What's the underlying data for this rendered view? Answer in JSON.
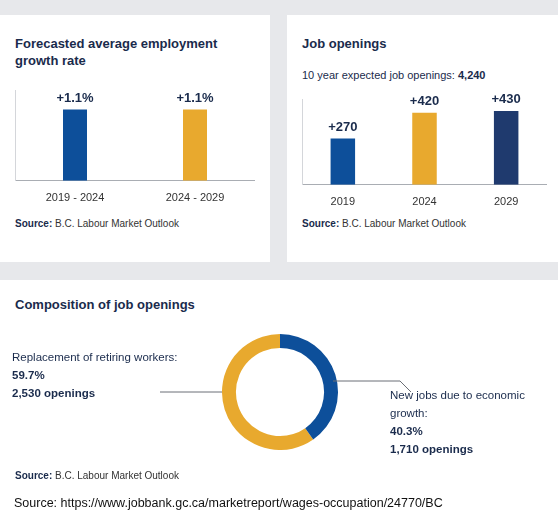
{
  "chart_data": [
    {
      "type": "bar",
      "title": "Forecasted average employment growth rate",
      "categories": [
        "2019 - 2024",
        "2024 - 2029"
      ],
      "values": [
        1.1,
        1.1
      ],
      "value_labels": [
        "+1.1%",
        "+1.1%"
      ],
      "colors": [
        "#0d4f9a",
        "#e8a92e"
      ],
      "ylim": [
        0,
        1.4
      ],
      "data_labels": true,
      "tick_labels": "x",
      "grid": false,
      "source": "Source: B.C. Labour Market Outlook"
    },
    {
      "type": "bar",
      "title": "Job openings",
      "subtitle": "10 year expected job openings: 4,240",
      "categories": [
        "2019",
        "2024",
        "2029"
      ],
      "values": [
        270,
        420,
        430
      ],
      "value_labels": [
        "+270",
        "+420",
        "+430"
      ],
      "colors": [
        "#0d4f9a",
        "#e8a92e",
        "#1f3a6e"
      ],
      "ylim": [
        0,
        500
      ],
      "data_labels": true,
      "tick_labels": "x",
      "grid": false,
      "source": "Source: B.C. Labour Market Outlook"
    },
    {
      "type": "doughnut",
      "title": "Composition of job openings",
      "categories": [
        "Replacement of retiring workers:",
        "New jobs due to economic growth:"
      ],
      "values": [
        59.7,
        40.3
      ],
      "value_labels": [
        "59.7%",
        "40.3%"
      ],
      "openings": [
        2530,
        1710
      ],
      "openings_labels": [
        "2,530 openings",
        "1,710 openings"
      ],
      "colors": [
        "#e8a92e",
        "#0d4f9a"
      ],
      "data_labels": true,
      "source": "Source: B.C. Labour Market Outlook"
    }
  ],
  "footer": "Source: https://www.jobbank.gc.ca/marketreport/wages-occupation/24770/BC"
}
